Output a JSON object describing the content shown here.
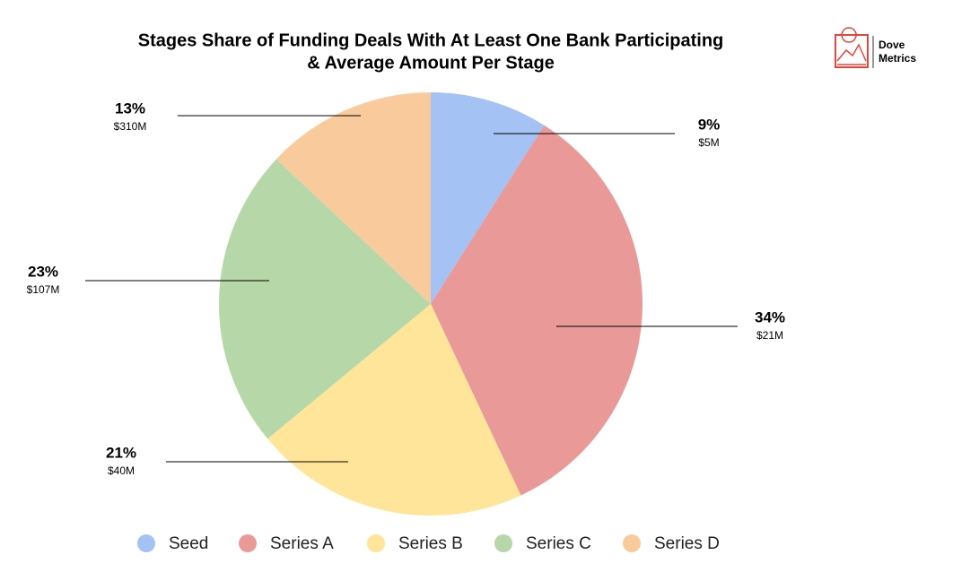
{
  "chart_data": {
    "type": "pie",
    "title": [
      "Stages Share of Funding Deals With At Least One Bank Participating",
      "& Average Amount Per Stage"
    ],
    "categories": [
      "Seed",
      "Series A",
      "Series B",
      "Series C",
      "Series D"
    ],
    "values": [
      9,
      34,
      21,
      23,
      13
    ],
    "value_labels": [
      "9%",
      "34%",
      "21%",
      "23%",
      "13%"
    ],
    "amount_labels": [
      "$5M",
      "$21M",
      "$40M",
      "$107M",
      "$310M"
    ],
    "colors": [
      "#a4c2f4",
      "#ea9999",
      "#ffe599",
      "#b6d7a8",
      "#f9cb9c"
    ],
    "legend": "bottom"
  },
  "logo": {
    "line1": "Dove",
    "line2": "Metrics"
  }
}
